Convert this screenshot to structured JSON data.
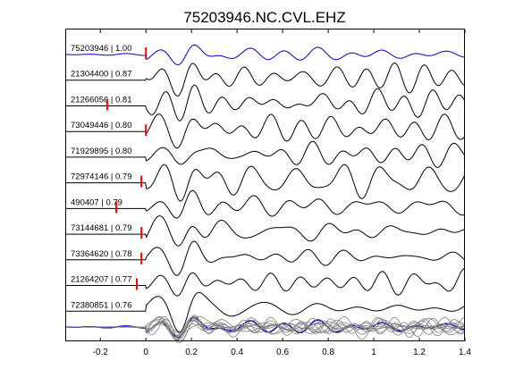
{
  "chart_data": {
    "type": "line",
    "title": "75203946.NC.CVL.EHZ",
    "xlabel": "",
    "ylabel": "",
    "xlim": [
      -0.35,
      1.4
    ],
    "x_ticks": [
      -0.2,
      0,
      0.2,
      0.4,
      0.6,
      0.8,
      1,
      1.2,
      1.4
    ],
    "x_tick_labels": [
      "-0.2",
      "0",
      "0.2",
      "0.4",
      "0.6",
      "0.8",
      "1",
      "1.2",
      "1.4"
    ],
    "grid": false,
    "colors": {
      "reference": "#0000cc",
      "trace": "#000000",
      "overlay": "#808080",
      "pick": "#ff0000",
      "axes": "#000000"
    },
    "series": [
      {
        "name": "75203946 | 1.00",
        "pick": 0.0,
        "reference": true
      },
      {
        "name": "21304400 | 0.87",
        "pick": null
      },
      {
        "name": "21266056 | 0.81",
        "pick": -0.17
      },
      {
        "name": "73049446 | 0.80",
        "pick": 0.0
      },
      {
        "name": "71929895 | 0.80",
        "pick": null
      },
      {
        "name": "72974146 | 0.79",
        "pick": -0.02
      },
      {
        "name": "490407 | 0.79",
        "pick": -0.13
      },
      {
        "name": "73144681 | 0.79",
        "pick": -0.02
      },
      {
        "name": "73364620 | 0.78",
        "pick": -0.02
      },
      {
        "name": "21264207 | 0.77",
        "pick": -0.04
      },
      {
        "name": "72380851 | 0.76",
        "pick": null
      }
    ],
    "stack": {
      "name": "overlay stack",
      "reference_series": "75203946 | 1.00"
    }
  }
}
